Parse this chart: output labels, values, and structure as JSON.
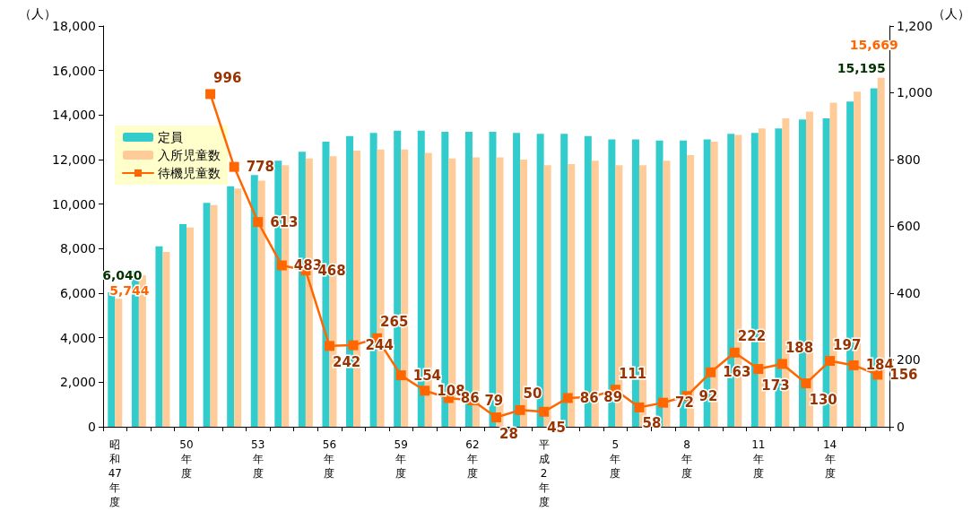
{
  "chart_data": {
    "type": "bar",
    "ylabel": "（人）",
    "y2label": "（人）",
    "categories": [
      "昭和47年度",
      null,
      null,
      "50年度",
      null,
      null,
      "53年度",
      null,
      null,
      "56年度",
      null,
      null,
      "59年度",
      null,
      null,
      "62年度",
      null,
      null,
      "平成2年度",
      null,
      null,
      "5年度",
      null,
      null,
      "8年度",
      null,
      null,
      "11年度",
      null,
      null,
      "14年度",
      null,
      null
    ],
    "series": [
      {
        "name": "定員",
        "color": "#33cccc",
        "values": [
          6040,
          7000,
          8100,
          9100,
          10050,
          10800,
          11300,
          11950,
          12350,
          12800,
          13050,
          13200,
          13300,
          13300,
          13250,
          13250,
          13250,
          13200,
          13150,
          13150,
          13050,
          12900,
          12900,
          12850,
          12850,
          12900,
          13150,
          13200,
          13400,
          13800,
          13850,
          14600,
          15195
        ],
        "value_labels": [
          "6,040",
          null,
          null,
          null,
          null,
          null,
          null,
          null,
          null,
          null,
          null,
          null,
          null,
          null,
          null,
          null,
          null,
          null,
          null,
          null,
          null,
          null,
          null,
          null,
          null,
          null,
          null,
          null,
          null,
          null,
          null,
          null,
          "15,195"
        ]
      },
      {
        "name": "入所児童数",
        "color": "#ffcc99",
        "values": [
          5744,
          6800,
          7850,
          8950,
          9950,
          10700,
          11050,
          11750,
          12050,
          12150,
          12400,
          12450,
          12450,
          12300,
          12050,
          12100,
          12100,
          12000,
          11750,
          11800,
          11950,
          11750,
          11750,
          11950,
          12200,
          12800,
          13100,
          13400,
          13850,
          14150,
          14550,
          15050,
          15669
        ],
        "value_labels": [
          "5,744",
          null,
          null,
          null,
          null,
          null,
          null,
          null,
          null,
          null,
          null,
          null,
          null,
          null,
          null,
          null,
          null,
          null,
          null,
          null,
          null,
          null,
          null,
          null,
          null,
          null,
          null,
          null,
          null,
          null,
          null,
          null,
          "15,669"
        ]
      },
      {
        "name": "待機児童数",
        "type": "line",
        "axis": "y2",
        "color": "#ff6600",
        "marker": "square",
        "data_labels": true,
        "values": [
          null,
          null,
          null,
          null,
          996,
          778,
          613,
          483,
          468,
          242,
          244,
          265,
          154,
          108,
          86,
          79,
          28,
          50,
          45,
          86,
          89,
          111,
          58,
          72,
          92,
          163,
          222,
          173,
          188,
          130,
          197,
          184,
          156
        ]
      }
    ],
    "ylim": [
      0,
      18000
    ],
    "yticks": [
      0,
      {
        "value": 2000,
        "label": "2,000"
      },
      {
        "value": 4000,
        "label": "4,000"
      },
      {
        "value": 6000,
        "label": "6,000"
      },
      {
        "value": 8000,
        "label": "8,000"
      },
      {
        "value": 10000,
        "label": "10,000"
      },
      {
        "value": 12000,
        "label": "12,000"
      },
      {
        "value": 14000,
        "label": "14,000"
      },
      {
        "value": 16000,
        "label": "16,000"
      },
      {
        "value": 18000,
        "label": "18,000"
      }
    ],
    "y2lim": [
      0,
      1200
    ],
    "y2ticks": [
      0,
      200,
      400,
      600,
      800,
      {
        "value": 1000,
        "label": "1,000"
      },
      {
        "value": 1200,
        "label": "1,200"
      }
    ],
    "legend": "top left",
    "grid": false
  }
}
